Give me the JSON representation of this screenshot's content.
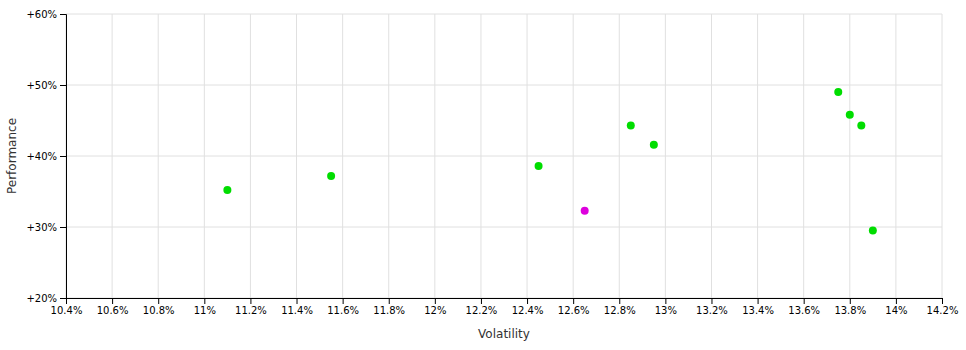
{
  "chart_data": {
    "type": "scatter",
    "xlabel": "Volatility",
    "ylabel": "Performance",
    "xlim": [
      0.104,
      0.142
    ],
    "ylim": [
      0.2,
      0.6
    ],
    "xticks": [
      {
        "value": 0.104,
        "label": "10.4%"
      },
      {
        "value": 0.106,
        "label": "10.6%"
      },
      {
        "value": 0.108,
        "label": "10.8%"
      },
      {
        "value": 0.11,
        "label": "11%"
      },
      {
        "value": 0.112,
        "label": "11.2%"
      },
      {
        "value": 0.114,
        "label": "11.4%"
      },
      {
        "value": 0.116,
        "label": "11.6%"
      },
      {
        "value": 0.118,
        "label": "11.8%"
      },
      {
        "value": 0.12,
        "label": "12%"
      },
      {
        "value": 0.122,
        "label": "12.2%"
      },
      {
        "value": 0.124,
        "label": "12.4%"
      },
      {
        "value": 0.126,
        "label": "12.6%"
      },
      {
        "value": 0.128,
        "label": "12.8%"
      },
      {
        "value": 0.13,
        "label": "13%"
      },
      {
        "value": 0.132,
        "label": "13.2%"
      },
      {
        "value": 0.134,
        "label": "13.4%"
      },
      {
        "value": 0.136,
        "label": "13.6%"
      },
      {
        "value": 0.138,
        "label": "13.8%"
      },
      {
        "value": 0.14,
        "label": "14%"
      },
      {
        "value": 0.142,
        "label": "14.2%"
      }
    ],
    "yticks": [
      {
        "value": 0.2,
        "label": "+20%"
      },
      {
        "value": 0.3,
        "label": "+30%"
      },
      {
        "value": 0.4,
        "label": "+40%"
      },
      {
        "value": 0.5,
        "label": "+50%"
      },
      {
        "value": 0.6,
        "label": "+60%"
      }
    ],
    "grid": true,
    "series": [
      {
        "color": "#00dd00",
        "x": [
          0.111,
          0.1155,
          0.1245,
          0.1285,
          0.1295,
          0.1375,
          0.138,
          0.1385,
          0.139
        ],
        "values": [
          0.352,
          0.372,
          0.386,
          0.443,
          0.416,
          0.49,
          0.458,
          0.443,
          0.295
        ]
      },
      {
        "color": "#dd00dd",
        "x": [
          0.1265
        ],
        "values": [
          0.323
        ]
      }
    ]
  }
}
